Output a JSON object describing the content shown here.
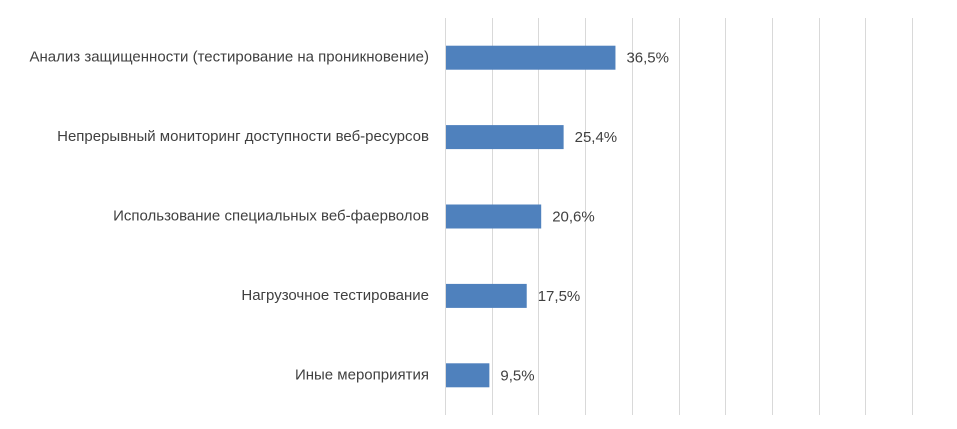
{
  "chart_data": {
    "type": "bar",
    "orientation": "horizontal",
    "categories": [
      "Анализ защищенности (тестирование на проникновение)",
      "Непрерывный мониторинг доступности веб-ресурсов",
      "Использование специальных веб-фаерволов",
      "Нагрузочное тестирование",
      "Иные мероприятия"
    ],
    "values": [
      36.5,
      25.4,
      20.6,
      17.5,
      9.5
    ],
    "data_labels": [
      "36,5%",
      "25,4%",
      "20,6%",
      "17,5%",
      "9,5%"
    ],
    "title": "",
    "xlabel": "",
    "ylabel": "",
    "xlim": [
      0,
      100
    ],
    "grid": true,
    "grid_step": 10,
    "tick_labels_shown": false,
    "legend": "none",
    "colors": {
      "bar": "#4f81bd",
      "grid": "#d9d9d9",
      "text": "#404040"
    }
  }
}
